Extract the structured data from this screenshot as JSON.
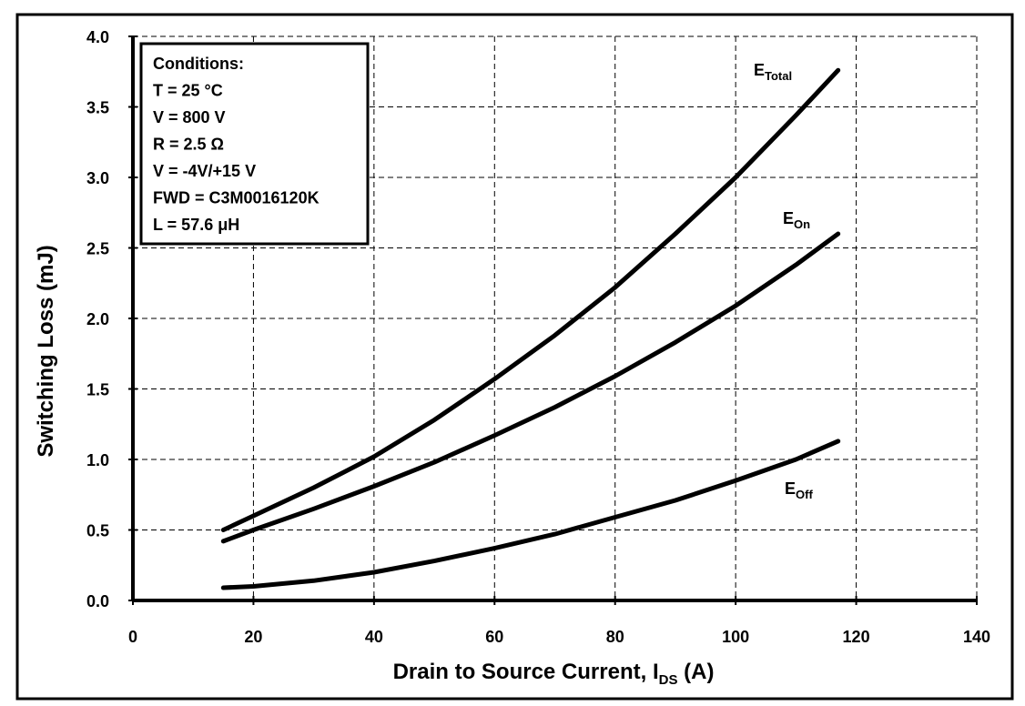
{
  "chart_data": {
    "type": "line",
    "xlabel": "Drain to Source Current, I",
    "xlabel_sub": "DS",
    "xlabel_unit": " (A)",
    "ylabel": "Switching Loss (mJ)",
    "xlim": [
      0,
      140
    ],
    "ylim": [
      0,
      4
    ],
    "xticks": [
      0,
      20,
      40,
      60,
      80,
      100,
      120,
      140
    ],
    "xtick_labels": [
      "0",
      "20",
      "40",
      "60",
      "80",
      "100",
      "120",
      "140"
    ],
    "yticks": [
      0,
      0.5,
      1.0,
      1.5,
      2.0,
      2.5,
      3.0,
      3.5,
      4.0
    ],
    "ytick_labels": [
      "0.0",
      "0.5",
      "1.0",
      "1.5",
      "2.0",
      "2.5",
      "3.0",
      "3.5",
      "4.0"
    ],
    "grid": true,
    "legend": {
      "placement": "top-left",
      "lines": [
        "Conditions:",
        "T = 25 °C",
        "V = 800 V",
        "R = 2.5 Ω",
        "V = -4V/+15 V",
        "FWD = C3M0016120K",
        "L = 57.6 μH"
      ]
    },
    "series": [
      {
        "name": "E",
        "name_sub": "Total",
        "x": [
          15,
          20,
          30,
          40,
          50,
          60,
          70,
          80,
          90,
          100,
          110,
          117
        ],
        "y": [
          0.5,
          0.6,
          0.8,
          1.02,
          1.28,
          1.57,
          1.88,
          2.22,
          2.6,
          3.0,
          3.44,
          3.76
        ]
      },
      {
        "name": "E",
        "name_sub": "On",
        "x": [
          15,
          20,
          30,
          40,
          50,
          60,
          70,
          80,
          90,
          100,
          110,
          117
        ],
        "y": [
          0.42,
          0.5,
          0.65,
          0.81,
          0.98,
          1.17,
          1.37,
          1.59,
          1.83,
          2.09,
          2.38,
          2.6
        ]
      },
      {
        "name": "E",
        "name_sub": "Off",
        "x": [
          15,
          20,
          30,
          40,
          50,
          60,
          70,
          80,
          90,
          100,
          110,
          117
        ],
        "y": [
          0.09,
          0.1,
          0.14,
          0.2,
          0.28,
          0.37,
          0.47,
          0.59,
          0.71,
          0.85,
          1.0,
          1.13
        ]
      }
    ]
  }
}
